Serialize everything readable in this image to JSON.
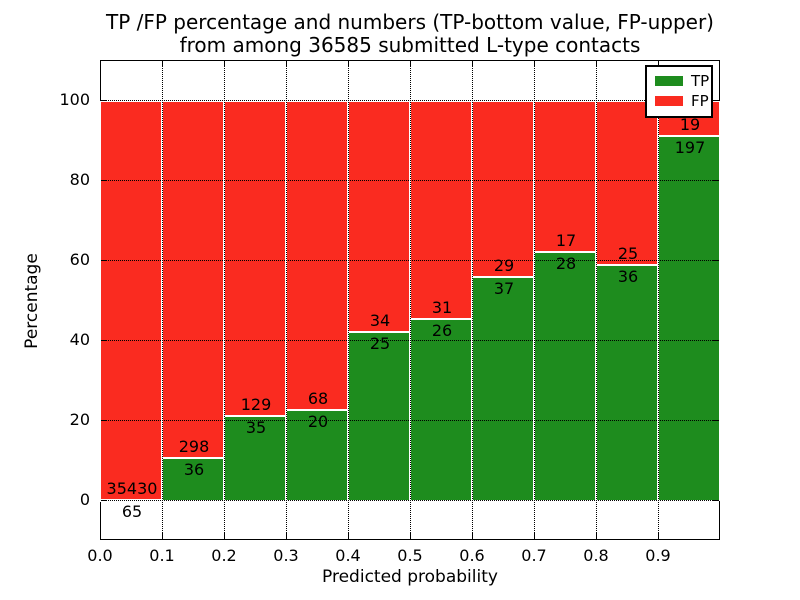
{
  "figure": {
    "title_line1": "TP /FP percentage and numbers (TP-bottom value, FP-upper)",
    "title_line2": "from among 36585 submitted L-type contacts",
    "xlabel": "Predicted probability",
    "ylabel": "Percentage"
  },
  "chart_data": {
    "type": "bar",
    "stacked": true,
    "title": "TP /FP percentage and numbers (TP-bottom value, FP-upper) from among 36585 submitted L-type contacts",
    "xlabel": "Predicted probability",
    "ylabel": "Percentage",
    "total_contacts": 36585,
    "bin_width": 0.1,
    "categories": [
      "0.0-0.1",
      "0.1-0.2",
      "0.2-0.3",
      "0.3-0.4",
      "0.4-0.5",
      "0.5-0.6",
      "0.6-0.7",
      "0.7-0.8",
      "0.8-0.9",
      "0.9-1.0"
    ],
    "x_tick_labels": [
      "0.0",
      "0.1",
      "0.2",
      "0.3",
      "0.4",
      "0.5",
      "0.6",
      "0.7",
      "0.8",
      "0.9"
    ],
    "y_tick_values": [
      0,
      20,
      40,
      60,
      80,
      100
    ],
    "xlim": [
      0.0,
      1.0
    ],
    "ylim": [
      -10,
      110
    ],
    "grid": "dotted",
    "legend_position": "upper right",
    "series": [
      {
        "name": "TP",
        "color": "#1e8c1e",
        "counts": [
          65,
          36,
          35,
          20,
          25,
          26,
          37,
          28,
          36,
          197
        ],
        "pct": [
          0.18,
          10.78,
          21.34,
          22.73,
          42.37,
          45.61,
          56.06,
          62.22,
          59.02,
          91.2
        ]
      },
      {
        "name": "FP",
        "color": "#fa2b20",
        "counts": [
          35430,
          298,
          129,
          68,
          34,
          31,
          29,
          17,
          25,
          19
        ],
        "pct": [
          99.82,
          89.22,
          78.66,
          77.27,
          57.63,
          54.39,
          43.94,
          37.78,
          40.98,
          8.8
        ]
      }
    ]
  }
}
